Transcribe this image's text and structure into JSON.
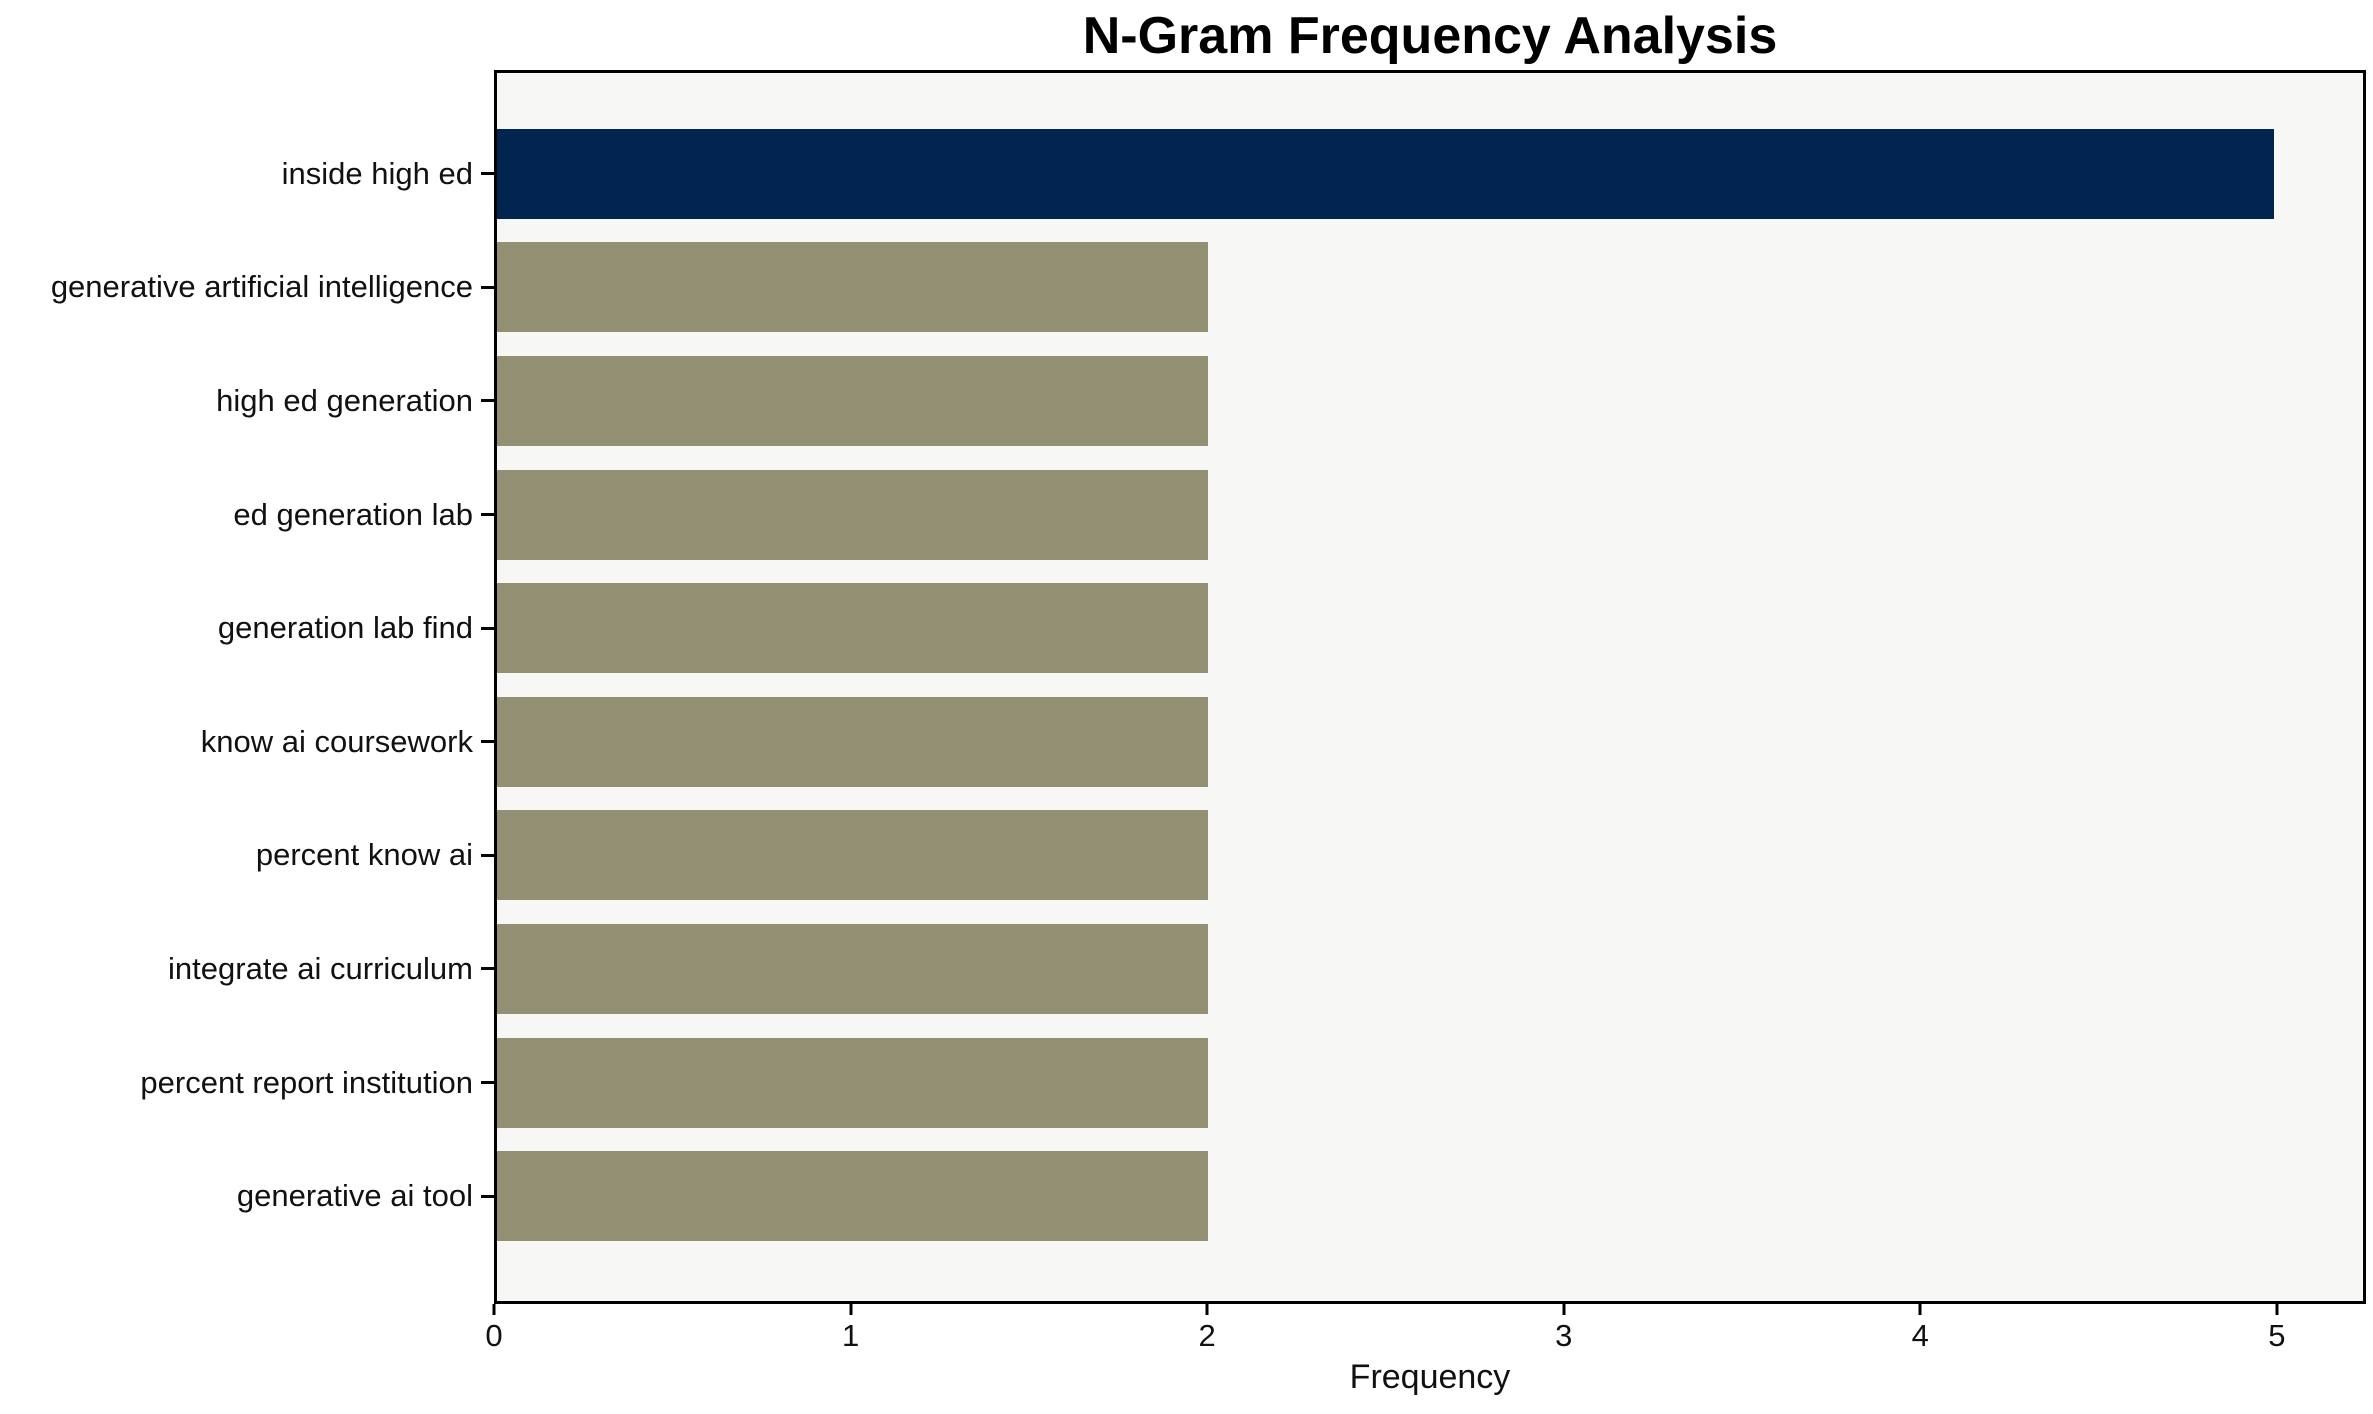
{
  "chart_data": {
    "type": "bar",
    "orientation": "horizontal",
    "title": "N-Gram Frequency Analysis",
    "xlabel": "Frequency",
    "ylabel": "",
    "categories": [
      "inside high ed",
      "generative artificial intelligence",
      "high ed generation",
      "ed generation lab",
      "generation lab find",
      "know ai coursework",
      "percent know ai",
      "integrate ai curriculum",
      "percent report institution",
      "generative ai tool"
    ],
    "values": [
      5,
      2,
      2,
      2,
      2,
      2,
      2,
      2,
      2,
      2
    ],
    "bar_colors": [
      "#022550",
      "#938F73",
      "#938F73",
      "#938F73",
      "#938F73",
      "#938F73",
      "#938F73",
      "#938F73",
      "#938F73",
      "#938F73"
    ],
    "xticks": [
      0,
      1,
      2,
      3,
      4,
      5
    ],
    "xlim": [
      0,
      5.25
    ],
    "grid": false,
    "legend_position": "none",
    "colors": {
      "bar_highlight": "#022550",
      "bar_default": "#938F73",
      "plot_background": "#F7F7F5",
      "figure_background": "#FFFFFF",
      "spine": "#000000",
      "text": "#111111"
    }
  }
}
